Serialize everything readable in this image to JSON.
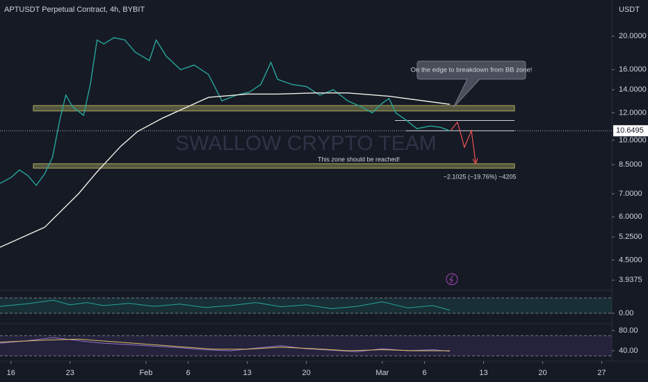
{
  "chart_data": {
    "type": "line",
    "title": "APTUSDT Perpetual Contract, 4h, BYBIT",
    "currency": "USDT",
    "watermark": "SWALLOW CRYPTO TEAM",
    "log_scale": true,
    "xlim": [
      -1.3,
      71.2
    ],
    "ylim": [
      3.73,
      25.45
    ],
    "xticks": [
      {
        "value": 0,
        "label": "16"
      },
      {
        "value": 7,
        "label": "23"
      },
      {
        "value": 16,
        "label": "Feb"
      },
      {
        "value": 21,
        "label": "6"
      },
      {
        "value": 28,
        "label": "13"
      },
      {
        "value": 35,
        "label": "20"
      },
      {
        "value": 44,
        "label": "Mar"
      },
      {
        "value": 49,
        "label": "6"
      },
      {
        "value": 56,
        "label": "13"
      },
      {
        "value": 63,
        "label": "20"
      },
      {
        "value": 70,
        "label": "27"
      }
    ],
    "yticks": [
      {
        "value": 20,
        "label": "20.0000"
      },
      {
        "value": 16,
        "label": "16.0000"
      },
      {
        "value": 14,
        "label": "14.0000"
      },
      {
        "value": 12,
        "label": "12.0000"
      },
      {
        "value": 10,
        "label": "10.0000"
      },
      {
        "value": 8.5,
        "label": "8.5000"
      },
      {
        "value": 7,
        "label": "7.0000"
      },
      {
        "value": 6,
        "label": "6.0000"
      },
      {
        "value": 5.25,
        "label": "5.2500"
      },
      {
        "value": 4.5,
        "label": "4.5000"
      },
      {
        "value": 3.9375,
        "label": "3.9375"
      }
    ],
    "series": [
      {
        "color": "#26a69a",
        "x": [
          -1.3,
          0,
          1,
          2,
          3,
          4,
          4.9,
          5.8,
          6.5,
          7.3,
          8.6,
          9.4,
          10.2,
          11,
          12.2,
          13.5,
          14.7,
          16.4,
          17.2,
          18.4,
          20.1,
          21.7,
          23.4,
          25,
          26.7,
          28.3,
          29.6,
          30.8,
          31.6,
          33.3,
          35,
          36.6,
          38.2,
          39.9,
          41.5,
          42.8,
          44,
          44.8,
          45.6,
          46.9,
          48.1,
          49.7,
          50.9,
          52
        ],
        "values": [
          7.5,
          7.8,
          8.2,
          7.9,
          7.4,
          8.0,
          8.9,
          11.5,
          13.5,
          12.5,
          11.8,
          14.5,
          19.5,
          19.0,
          19.8,
          19.5,
          18.0,
          17.0,
          19.5,
          17.5,
          16.0,
          16.5,
          15.5,
          13.0,
          13.5,
          13.8,
          14.5,
          16.8,
          15.0,
          14.5,
          14.3,
          13.5,
          14.0,
          13.0,
          12.5,
          12.0,
          12.8,
          13.2,
          12.0,
          11.4,
          10.8,
          11.0,
          10.9,
          10.6495
        ]
      },
      {
        "color": "#f0f0e8",
        "x": [
          -1.3,
          4,
          8,
          10.2,
          13,
          15,
          18,
          23.4,
          28,
          31.6,
          36,
          39.9,
          44.8,
          52
        ],
        "values": [
          4.9,
          5.6,
          7.0,
          8.1,
          9.6,
          10.6,
          11.6,
          13.3,
          13.6,
          13.6,
          13.7,
          13.7,
          13.4,
          12.7
        ]
      }
    ],
    "zones": [
      [
        12.15,
        12.6
      ],
      [
        8.3,
        8.55
      ]
    ],
    "zone_color": "#c8c86e",
    "levels": [
      11.4,
      10.65
    ],
    "last_price": 10.6495,
    "annotations": {
      "callout": "On the edge to breakdown from BB zone!",
      "zone_note": "This zone should be reached!",
      "projection": "−2.1025 (−19.76%) −4205"
    },
    "panes": [
      {
        "ylim": [
          -20,
          60
        ],
        "yticks": [
          {
            "value": 0,
            "label": "0.00"
          }
        ],
        "band": [
          0,
          40
        ],
        "band_color": "#26a69a",
        "series": [
          {
            "color": "#26a69a",
            "x": [
              -1.3,
              2,
              5,
              7,
              9,
              11,
              14,
              17,
              20,
              23,
              26,
              29,
              32,
              35,
              38,
              41,
              44,
              47,
              50,
              52
            ],
            "values": [
              18,
              25,
              34,
              22,
              28,
              20,
              26,
              18,
              24,
              15,
              20,
              28,
              17,
              22,
              12,
              18,
              30,
              14,
              20,
              8
            ]
          }
        ]
      },
      {
        "ylim": [
          22,
          91
        ],
        "yticks": [
          {
            "value": 80,
            "label": "80.00"
          },
          {
            "value": 40,
            "label": "40.00"
          }
        ],
        "band": [
          30,
          70
        ],
        "band_color": "#7e57c2",
        "series": [
          {
            "color": "#9575cd",
            "x": [
              -1.3,
              2,
              5,
              7,
              9,
              11,
              14,
              17,
              20,
              23,
              26,
              29,
              32,
              35,
              38,
              41,
              44,
              47,
              50,
              52
            ],
            "values": [
              55,
              60,
              66,
              62,
              58,
              55,
              52,
              49,
              46,
              42,
              40,
              45,
              50,
              44,
              41,
              38,
              44,
              40,
              42,
              39
            ]
          },
          {
            "color": "#e0c060",
            "x": [
              -1.3,
              4,
              8,
              12,
              16,
              20,
              24,
              28,
              32,
              36,
              40,
              44,
              48,
              52
            ],
            "values": [
              57,
              61,
              63,
              58,
              53,
              48,
              43,
              43,
              47,
              44,
              40,
              42,
              40,
              40
            ]
          }
        ]
      }
    ]
  }
}
